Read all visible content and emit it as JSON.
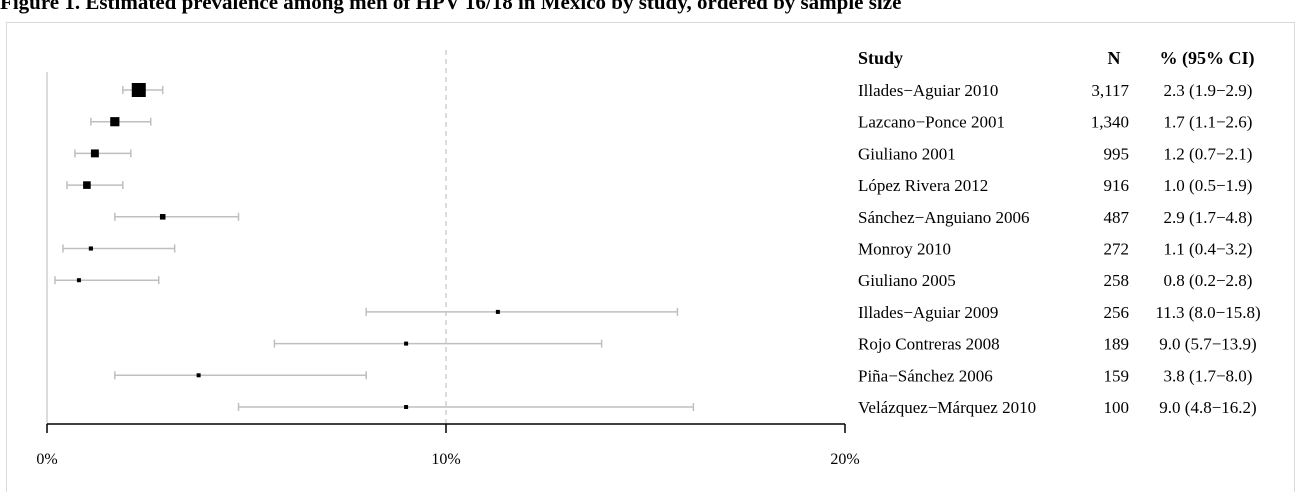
{
  "title": "Figure 1. Estimated prevalence among men of HPV 16/18 in Mexico by study, ordered by sample size",
  "table_headers": {
    "study": "Study",
    "n": "N",
    "ci": "% (95% CI)"
  },
  "colors": {
    "point": "#000000",
    "ci_line": "#bfbfbf",
    "ref_line": "#c8c8c8",
    "axis": "#000000"
  },
  "chart_data": {
    "type": "forest",
    "xlim": [
      0,
      20
    ],
    "x_ticks": [
      0,
      10,
      20
    ],
    "x_tick_labels": [
      "0%",
      "10%",
      "20%"
    ],
    "reference_line": 10,
    "grid": false,
    "studies": [
      {
        "study": "Illades−Aguiar 2010",
        "n": 3117,
        "n_label": "3,117",
        "est": 2.3,
        "lo": 1.9,
        "hi": 2.9,
        "label": "2.3 (1.9−2.9)"
      },
      {
        "study": "Lazcano−Ponce 2001",
        "n": 1340,
        "n_label": "1,340",
        "est": 1.7,
        "lo": 1.1,
        "hi": 2.6,
        "label": "1.7 (1.1−2.6)"
      },
      {
        "study": "Giuliano 2001",
        "n": 995,
        "n_label": "995",
        "est": 1.2,
        "lo": 0.7,
        "hi": 2.1,
        "label": "1.2 (0.7−2.1)"
      },
      {
        "study": "López Rivera 2012",
        "n": 916,
        "n_label": "916",
        "est": 1.0,
        "lo": 0.5,
        "hi": 1.9,
        "label": "1.0 (0.5−1.9)"
      },
      {
        "study": "Sánchez−Anguiano 2006",
        "n": 487,
        "n_label": "487",
        "est": 2.9,
        "lo": 1.7,
        "hi": 4.8,
        "label": "2.9 (1.7−4.8)"
      },
      {
        "study": "Monroy 2010",
        "n": 272,
        "n_label": "272",
        "est": 1.1,
        "lo": 0.4,
        "hi": 3.2,
        "label": "1.1 (0.4−3.2)"
      },
      {
        "study": "Giuliano 2005",
        "n": 258,
        "n_label": "258",
        "est": 0.8,
        "lo": 0.2,
        "hi": 2.8,
        "label": "0.8 (0.2−2.8)"
      },
      {
        "study": "Illades−Aguiar 2009",
        "n": 256,
        "n_label": "256",
        "est": 11.3,
        "lo": 8.0,
        "hi": 15.8,
        "label": "11.3 (8.0−15.8)"
      },
      {
        "study": "Rojo Contreras 2008",
        "n": 189,
        "n_label": "189",
        "est": 9.0,
        "lo": 5.7,
        "hi": 13.9,
        "label": "9.0 (5.7−13.9)"
      },
      {
        "study": "Piña−Sánchez 2006",
        "n": 159,
        "n_label": "159",
        "est": 3.8,
        "lo": 1.7,
        "hi": 8.0,
        "label": "3.8 (1.7−8.0)"
      },
      {
        "study": "Velázquez−Márquez 2010",
        "n": 100,
        "n_label": "100",
        "est": 9.0,
        "lo": 4.8,
        "hi": 16.2,
        "label": "9.0 (4.8−16.2)"
      }
    ]
  }
}
